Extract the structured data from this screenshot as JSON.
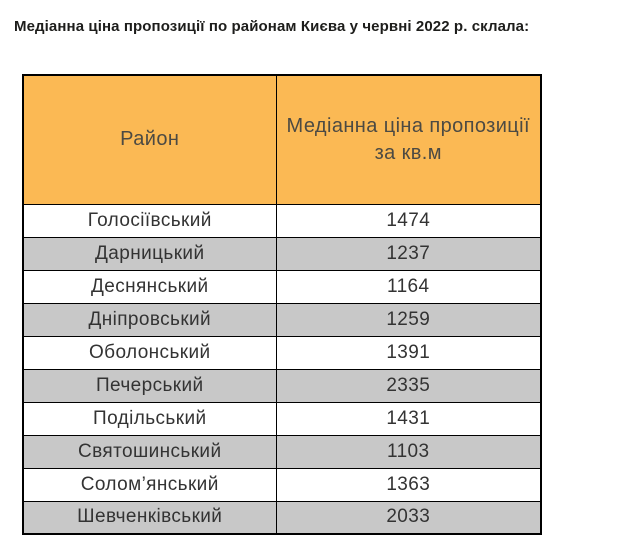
{
  "page_title": "Медіанна ціна пропозиції по районам Києва у червні 2022 р. склала:",
  "chart_data": {
    "type": "table",
    "title": "Медіанна ціна пропозиції по районам Києва у червні 2022 р. склала:",
    "columns": [
      "Район",
      "Медіанна ціна пропозиції за кв.м"
    ],
    "rows": [
      [
        "Голосіївський",
        1474
      ],
      [
        "Дарницький",
        1237
      ],
      [
        "Деснянський",
        1164
      ],
      [
        "Дніпровський",
        1259
      ],
      [
        "Оболонський",
        1391
      ],
      [
        "Печерський",
        2335
      ],
      [
        "Подільський",
        1431
      ],
      [
        "Святошинський",
        1103
      ],
      [
        "Солом’янський",
        1363
      ],
      [
        "Шевченківський",
        2033
      ]
    ],
    "units": "USD per sq.m (implied)",
    "layout": {
      "header_background": "#fbb954",
      "alt_row_background": "#c8c8c8",
      "row_background": "#ffffff",
      "border_color": "#000000",
      "grid": true
    }
  },
  "colors": {
    "header_bg": "#fbb954",
    "alt_row_bg": "#c8c8c8",
    "border": "#000000",
    "title_text": "#1d1d1b",
    "cell_text": "#333333",
    "header_text": "#4c4a43"
  }
}
